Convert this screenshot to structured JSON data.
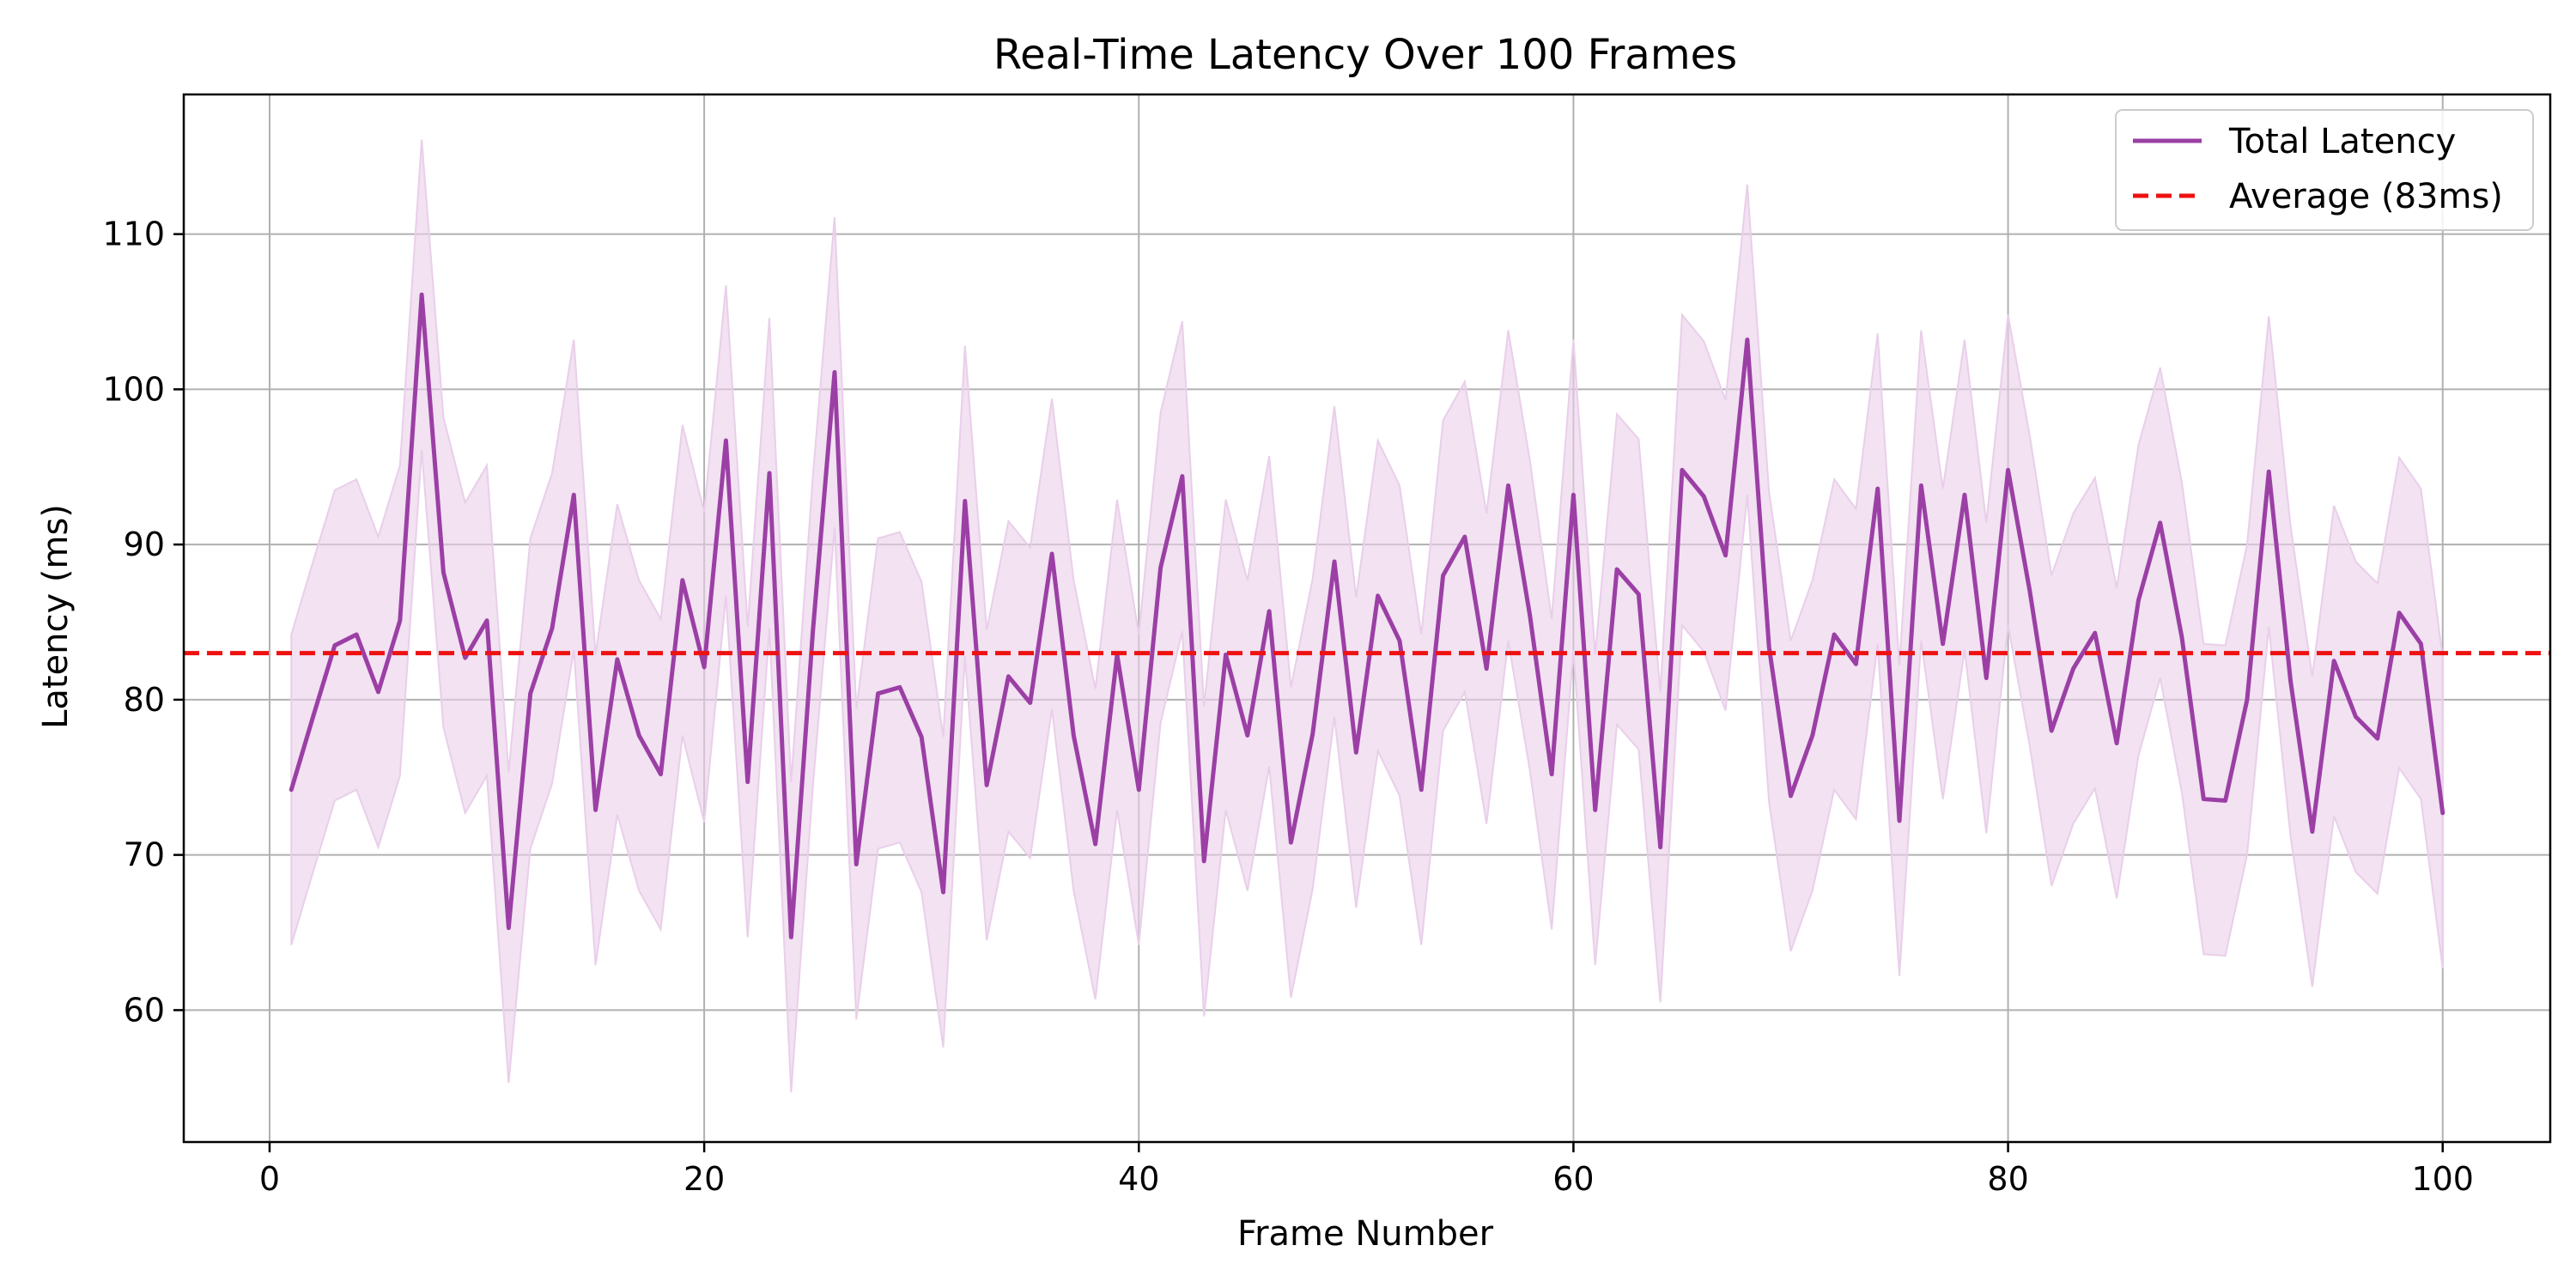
{
  "chart_data": {
    "type": "line",
    "title": "Real-Time Latency Over 100 Frames",
    "xlabel": "Frame Number",
    "ylabel": "Latency (ms)",
    "xlim": [
      -3.95,
      104.95
    ],
    "ylim": [
      51.5,
      119.0
    ],
    "x_ticks": [
      0,
      20,
      40,
      60,
      80,
      100
    ],
    "y_ticks": [
      60,
      70,
      80,
      90,
      100,
      110
    ],
    "grid": true,
    "legend_position": "top-right",
    "band_half_width": 10,
    "colors": {
      "line": "#9b3fa5",
      "band": "#e9cfe9",
      "average": "#ee1111",
      "grid": "#b0b0b0",
      "axes": "#000000"
    },
    "x": [
      1,
      2,
      3,
      4,
      5,
      6,
      7,
      8,
      9,
      10,
      11,
      12,
      13,
      14,
      15,
      16,
      17,
      18,
      19,
      20,
      21,
      22,
      23,
      24,
      25,
      26,
      27,
      28,
      29,
      30,
      31,
      32,
      33,
      34,
      35,
      36,
      37,
      38,
      39,
      40,
      41,
      42,
      43,
      44,
      45,
      46,
      47,
      48,
      49,
      50,
      51,
      52,
      53,
      54,
      55,
      56,
      57,
      58,
      59,
      60,
      61,
      62,
      63,
      64,
      65,
      66,
      67,
      68,
      69,
      70,
      71,
      72,
      73,
      74,
      75,
      76,
      77,
      78,
      79,
      80,
      81,
      82,
      83,
      84,
      85,
      86,
      87,
      88,
      89,
      90,
      91,
      92,
      93,
      94,
      95,
      96,
      97,
      98,
      99,
      100
    ],
    "series": [
      {
        "name": "Total Latency",
        "values": [
          74.2,
          78.9,
          83.5,
          84.2,
          80.5,
          85.1,
          106.1,
          88.2,
          82.7,
          85.1,
          65.3,
          80.4,
          84.6,
          93.2,
          72.9,
          82.6,
          77.7,
          75.2,
          87.7,
          82.1,
          96.7,
          74.7,
          94.6,
          64.7,
          84.4,
          101.1,
          69.4,
          80.4,
          80.8,
          77.6,
          67.6,
          92.8,
          74.5,
          81.5,
          79.8,
          89.4,
          77.7,
          70.7,
          82.9,
          74.2,
          88.5,
          94.4,
          69.6,
          82.9,
          77.7,
          85.7,
          70.8,
          77.8,
          88.9,
          76.6,
          86.7,
          83.8,
          74.2,
          88.0,
          90.5,
          82.0,
          93.8,
          85.4,
          75.2,
          93.2,
          72.9,
          88.4,
          86.8,
          70.5,
          94.8,
          93.1,
          89.3,
          103.2,
          83.4,
          73.8,
          77.7,
          84.2,
          82.3,
          93.6,
          72.2,
          93.8,
          83.6,
          93.2,
          81.4,
          94.8,
          87.0,
          78.0,
          82.0,
          84.3,
          77.2,
          86.4,
          91.4,
          84.0,
          73.6,
          73.5,
          80.0,
          94.7,
          81.2,
          71.5,
          82.5,
          78.9,
          77.5,
          85.6,
          83.6,
          72.7
        ]
      },
      {
        "name": "Average (83ms)",
        "value": 83
      }
    ]
  }
}
